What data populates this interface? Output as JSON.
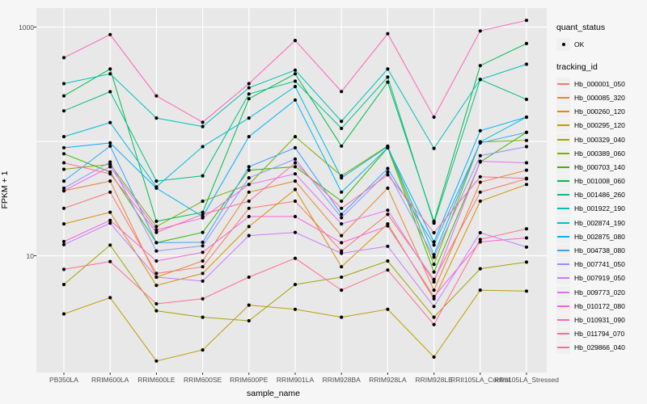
{
  "figure": {
    "background": "#f6f6f6",
    "panel_background": "#e8e8e8",
    "gridline_color": "#ffffff",
    "point_color": "#000000",
    "tick_label_color": "#4d4d4d"
  },
  "axes": {
    "x_title": "sample_name",
    "y_title": "FPKM + 1"
  },
  "legend": {
    "quant_title": "quant_status",
    "quant_item_label": "OK",
    "quant_glyph": "black-point",
    "tracking_title": "tracking_id"
  },
  "chart_data": {
    "type": "line",
    "title": "",
    "xlabel": "sample_name",
    "ylabel": "FPKM + 1",
    "log_y": true,
    "ylim": [
      0.95,
      1470
    ],
    "y_tick_labels": [
      {
        "label": "1000",
        "value": 1000
      },
      {
        "label": "10",
        "value": 10
      }
    ],
    "y_gridlines": [
      10,
      100,
      1000
    ],
    "grid": true,
    "legend_position": "right",
    "quant_status": "OK",
    "categories": [
      "PB350LA",
      "RRIM600LA",
      "RRIM600LE",
      "RRIM600SE",
      "RRIM600PE",
      "RRIM901LA",
      "RRIM928BA",
      "RRIM928LA",
      "RRIM928LE",
      "RRII105LA_Control",
      "RRII105LA_Stressed"
    ],
    "series": [
      {
        "name": "Hb_000001_050",
        "color": "#F8766D",
        "values": [
          26,
          36,
          7,
          8,
          26,
          30,
          11,
          23,
          6.2,
          36,
          47
        ]
      },
      {
        "name": "Hb_000085_320",
        "color": "#EA8331",
        "values": [
          37,
          45,
          6.5,
          9,
          36,
          45,
          15,
          39,
          5.0,
          44,
          56
        ]
      },
      {
        "name": "Hb_000260_120",
        "color": "#D89000",
        "values": [
          19,
          24,
          5.5,
          7,
          18,
          38,
          8,
          19,
          4.2,
          30,
          42
        ]
      },
      {
        "name": "Hb_000295_120",
        "color": "#C09B00",
        "values": [
          3.1,
          4.3,
          1.2,
          1.5,
          3.7,
          3.4,
          2.9,
          3.4,
          1.3,
          5.0,
          4.9
        ]
      },
      {
        "name": "Hb_000329_040",
        "color": "#A3A500",
        "values": [
          5.6,
          12.4,
          3.3,
          2.9,
          2.7,
          5.6,
          6.5,
          9,
          2.9,
          7.7,
          8.8
        ]
      },
      {
        "name": "Hb_000389_060",
        "color": "#7CAE00",
        "values": [
          57,
          63,
          18,
          30,
          42,
          110,
          50,
          91,
          8.4,
          99,
          102
        ]
      },
      {
        "name": "Hb_000703_140",
        "color": "#39B600",
        "values": [
          78,
          54,
          13,
          16,
          56,
          60,
          30,
          88,
          7.2,
          66,
          120
        ]
      },
      {
        "name": "Hb_001008_060",
        "color": "#00BB4E",
        "values": [
          250,
          430,
          20,
          24,
          236,
          390,
          91,
          330,
          20,
          460,
          718
        ]
      },
      {
        "name": "Hb_001486_260",
        "color": "#00C087",
        "values": [
          185,
          272,
          45,
          50,
          260,
          336,
          130,
          365,
          19.3,
          348,
          233
        ]
      },
      {
        "name": "Hb_001922_190",
        "color": "#00C0B8",
        "values": [
          320,
          390,
          160,
          135,
          294,
          420,
          150,
          430,
          87,
          348,
          473
        ]
      },
      {
        "name": "Hb_002874_190",
        "color": "#00BCD8",
        "values": [
          110,
          146,
          40,
          90,
          160,
          302,
          48,
          90,
          10.2,
          99,
          163
        ]
      },
      {
        "name": "Hb_002875_080",
        "color": "#00B0F6",
        "values": [
          88,
          97,
          39,
          22,
          110,
          230,
          36,
          88,
          13.2,
          124,
          163
        ]
      },
      {
        "name": "Hb_004738_080",
        "color": "#35A2FF",
        "values": [
          45,
          91,
          13,
          13.1,
          60,
          88,
          23,
          58,
          12.4,
          97,
          120
        ]
      },
      {
        "name": "Hb_007741_050",
        "color": "#9590FF",
        "values": [
          39,
          66,
          11,
          12.2,
          48,
          70,
          21.5,
          54,
          9.7,
          75,
          90
        ]
      },
      {
        "name": "Hb_007919_050",
        "color": "#C77CFF",
        "values": [
          12.5,
          19.3,
          6.5,
          6,
          15,
          16,
          10.5,
          12.1,
          3.6,
          15.9,
          11.9
        ]
      },
      {
        "name": "Hb_009773_020",
        "color": "#E76BF3",
        "values": [
          37,
          60,
          16.8,
          21.4,
          42,
          52,
          19,
          25,
          5.9,
          67,
          65
        ]
      },
      {
        "name": "Hb_010172_080",
        "color": "#FA62DB",
        "values": [
          13.3,
          20.4,
          9,
          10.7,
          22,
          22,
          13,
          18.2,
          4.4,
          13.2,
          14.3
        ]
      },
      {
        "name": "Hb_010931_090",
        "color": "#FF62BC",
        "values": [
          540,
          860,
          250,
          147,
          320,
          763,
          273,
          875,
          163,
          925,
          1145
        ]
      },
      {
        "name": "Hb_011794_070",
        "color": "#FF6A98",
        "values": [
          65,
          52,
          16,
          23,
          30,
          65,
          26,
          51,
          15.9,
          49,
          47.5
        ]
      },
      {
        "name": "Hb_029866_040",
        "color": "#FF6C91",
        "values": [
          7.6,
          8.9,
          3.8,
          4.2,
          6.5,
          9.5,
          5,
          7.5,
          2.5,
          13.9,
          17.2
        ]
      }
    ]
  }
}
